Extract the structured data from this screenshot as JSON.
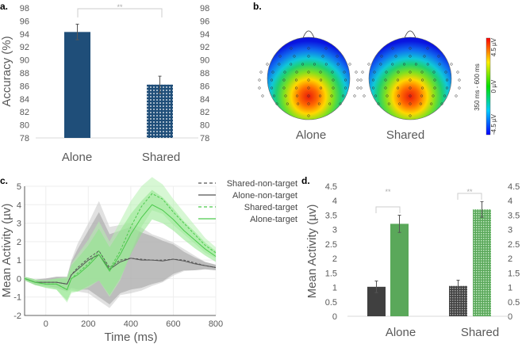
{
  "panels": {
    "a": "a.",
    "b": "b.",
    "c": "c.",
    "d": "d."
  },
  "chart_data": [
    {
      "id": "a",
      "type": "bar",
      "title": "",
      "ylabel": "Accuracy (%)",
      "xlabel": "",
      "categories": [
        "Alone",
        "Shared"
      ],
      "values": [
        94.3,
        86.2
      ],
      "errors": [
        1.2,
        1.3
      ],
      "ylim": [
        78,
        98
      ],
      "yticks": [
        "78",
        "80",
        "82",
        "84",
        "86",
        "88",
        "90",
        "92",
        "94",
        "96",
        "98"
      ],
      "significance": "**",
      "colors": [
        "#1f4e79",
        "#1f4e79"
      ]
    },
    {
      "id": "b",
      "type": "heatmap",
      "title": "350 ms - 600 ms",
      "maps": [
        "Alone",
        "Shared"
      ],
      "colorbar": {
        "min_label": "-4.5 µV",
        "mid_label": "0 µV",
        "max_label": "4.5 µV",
        "range": [
          -4.5,
          4.5
        ]
      }
    },
    {
      "id": "c",
      "type": "line",
      "xlabel": "Time (ms)",
      "ylabel": "Mean Activity (µv)",
      "xlim": [
        -100,
        800
      ],
      "ylim": [
        -2,
        5
      ],
      "xticks": [
        "0",
        "200",
        "400",
        "600",
        "800"
      ],
      "yticks": [
        "-2",
        "-1",
        "0",
        "1",
        "2",
        "3",
        "4",
        "5"
      ],
      "x": [
        -100,
        -50,
        0,
        50,
        100,
        120,
        150,
        200,
        250,
        300,
        350,
        400,
        450,
        500,
        550,
        600,
        650,
        700,
        750,
        800
      ],
      "series": [
        {
          "name": "Shared-non-target",
          "color": "#555555",
          "dash": true,
          "values": [
            0,
            -0.2,
            -0.2,
            -0.2,
            -0.3,
            0.2,
            0.6,
            1.1,
            1.5,
            0.6,
            1.0,
            1.1,
            1.05,
            1.0,
            1.0,
            1.05,
            1.0,
            0.85,
            0.7,
            0.6
          ],
          "ci": [
            0.1,
            0.15,
            0.2,
            0.3,
            0.4,
            0.8,
            1.3,
            1.9,
            2.7,
            2.2,
            1.9,
            1.9,
            1.7,
            1.4,
            1.2,
            0.9,
            0.6,
            0.4,
            0.2,
            0.15
          ],
          "band": "#c8c8c8"
        },
        {
          "name": "Alone-non-target",
          "color": "#555555",
          "dash": false,
          "values": [
            0,
            -0.2,
            -0.2,
            -0.2,
            -0.3,
            0.2,
            0.5,
            1.0,
            1.3,
            0.5,
            0.9,
            1.1,
            1.0,
            1.0,
            0.95,
            1.05,
            0.95,
            0.8,
            0.7,
            0.6
          ],
          "ci": [
            0.1,
            0.15,
            0.2,
            0.3,
            0.4,
            0.7,
            1.1,
            1.6,
            2.3,
            1.9,
            1.7,
            1.7,
            1.5,
            1.3,
            1.1,
            0.8,
            0.5,
            0.35,
            0.2,
            0.15
          ],
          "band": "#a0a0a0"
        },
        {
          "name": "Shared-target",
          "color": "#4cc94c",
          "dash": true,
          "values": [
            0,
            -0.2,
            -0.3,
            -0.3,
            -0.6,
            0,
            0.3,
            0.8,
            1.5,
            0.5,
            1.5,
            2.8,
            3.9,
            4.6,
            4.3,
            3.6,
            3.0,
            2.4,
            1.8,
            1.4
          ],
          "ci": [
            0.1,
            0.15,
            0.2,
            0.3,
            0.7,
            0.8,
            1.0,
            1.3,
            1.6,
            1.5,
            1.6,
            1.4,
            1.1,
            0.9,
            0.8,
            0.7,
            0.6,
            0.5,
            0.4,
            0.3
          ],
          "band": "#b6f0b0"
        },
        {
          "name": "Alone-target",
          "color": "#4cc94c",
          "dash": false,
          "values": [
            0,
            -0.2,
            -0.3,
            -0.3,
            -0.6,
            0,
            0.2,
            0.7,
            1.3,
            0.4,
            1.3,
            2.4,
            3.3,
            4.0,
            3.7,
            3.2,
            2.6,
            2.1,
            1.6,
            1.2
          ],
          "ci": [
            0.1,
            0.15,
            0.2,
            0.3,
            0.6,
            0.7,
            0.9,
            1.1,
            1.4,
            1.3,
            1.3,
            1.1,
            0.9,
            0.8,
            0.7,
            0.6,
            0.5,
            0.45,
            0.35,
            0.3
          ],
          "band": "#8fe68a"
        }
      ]
    },
    {
      "id": "d",
      "type": "bar",
      "ylabel": "Mean Activity (µv)",
      "categories": [
        "Alone",
        "Shared"
      ],
      "ylim": [
        0,
        4.5
      ],
      "yticks": [
        "0",
        "0.5",
        "1",
        "1.5",
        "2",
        "2.5",
        "3",
        "3.5",
        "4",
        "4.5"
      ],
      "series": [
        {
          "name": "non-target",
          "color": "#404040",
          "values": [
            1.02,
            1.05
          ],
          "errors": [
            0.2,
            0.2
          ]
        },
        {
          "name": "target",
          "color": "#5aa85a",
          "values": [
            3.2,
            3.7
          ],
          "errors": [
            0.3,
            0.27
          ]
        }
      ],
      "significance": [
        "**",
        "**"
      ]
    }
  ]
}
